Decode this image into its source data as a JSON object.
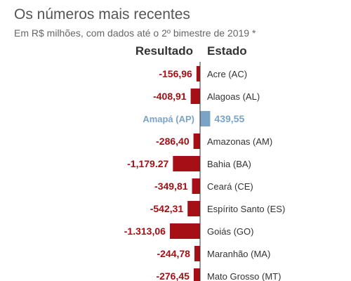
{
  "header": {
    "title": "Os números mais recentes",
    "subtitle": "Em R$ milhões, com dados até o 2º bimestre de 2019 *",
    "col_result": "Resultado",
    "col_state": "Estado"
  },
  "colors": {
    "negative": "#a50f15",
    "positive": "#7ba3c7",
    "axis": "#333333",
    "positive_label": "#7ba3c7"
  },
  "chart_data": {
    "type": "bar",
    "orientation": "horizontal",
    "title": "Os números mais recentes",
    "subtitle": "Em R$ milhões, com dados até o 2º bimestre de 2019 *",
    "categories": [
      "Acre (AC)",
      "Alagoas (AL)",
      "Amapá (AP)",
      "Amazonas (AM)",
      "Bahia (BA)",
      "Ceará (CE)",
      "Espírito Santo (ES)",
      "Goiás (GO)",
      "Maranhão (MA)",
      "Mato Grosso (MT)"
    ],
    "values": [
      -156.96,
      -408.91,
      439.55,
      -286.4,
      -1179.27,
      -349.81,
      -542.31,
      -1313.06,
      -244.78,
      -276.45
    ],
    "value_labels": [
      "-156,96",
      "-408,91",
      "439,55",
      "-286,40",
      "-1,179.27",
      "-349,81",
      "-542,31",
      "-1.313,06",
      "-244,78",
      "-276,45"
    ],
    "highlight": {
      "category_label": "Amapá (AP)",
      "value_label": "439,55"
    },
    "grid": false,
    "legend": "none"
  }
}
